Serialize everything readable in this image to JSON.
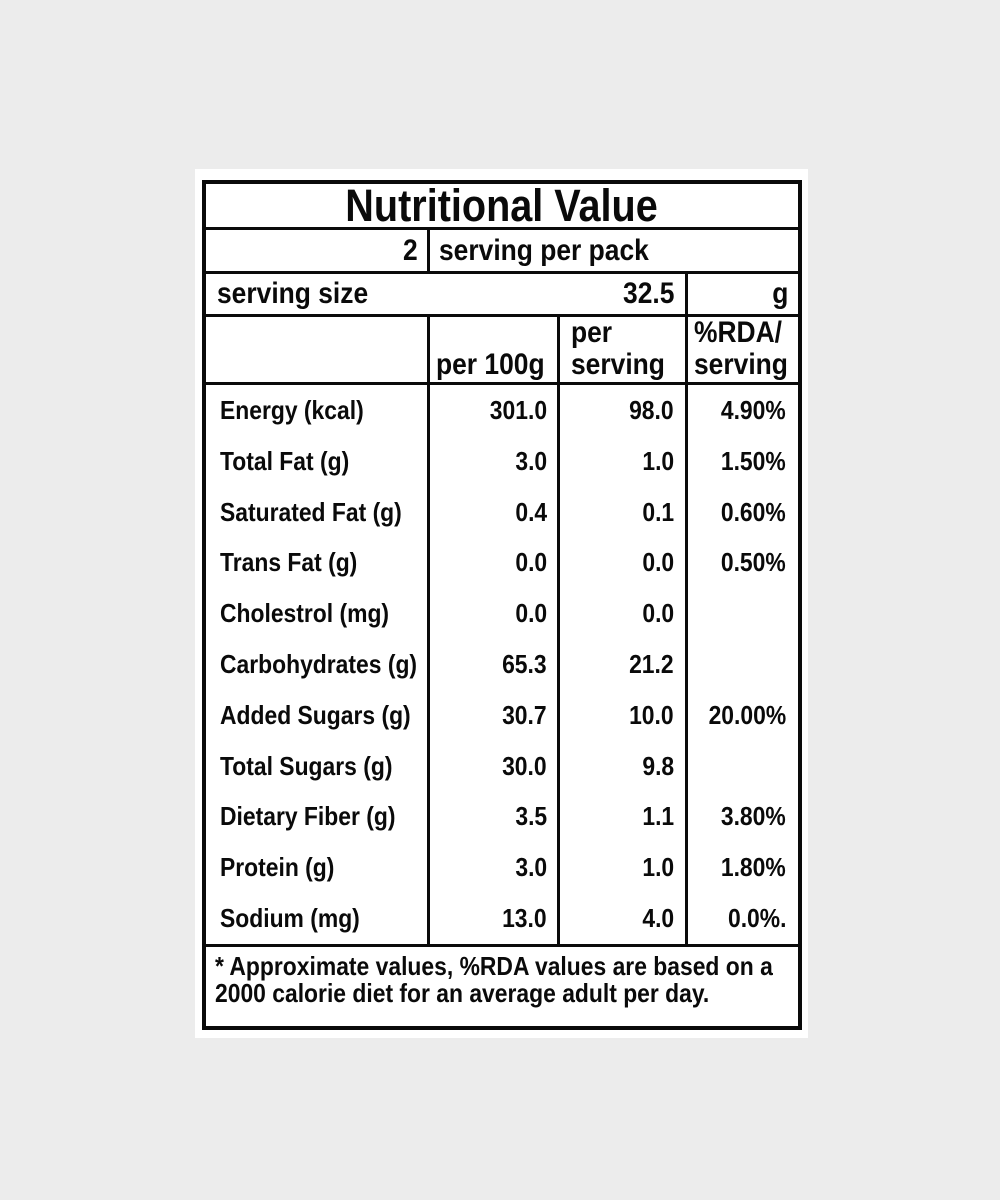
{
  "theme": {
    "page_background": "#ececec",
    "card_background": "#ffffff",
    "line_color": "#0a0a0a",
    "text_color": "#0a0a0a"
  },
  "label": {
    "title": "Nutritional Value",
    "servings_per_pack": {
      "value": "2",
      "text": "serving per pack"
    },
    "serving_size": {
      "text": "serving size",
      "value": "32.5",
      "unit": "g"
    },
    "columns": {
      "per_100g": "per 100g",
      "per_serving": "per\nserving",
      "rda_serving": "%RDA/\nserving"
    },
    "rows": [
      {
        "label": "Energy (kcal)",
        "per_100g": "301.0",
        "per_serving": "98.0",
        "rda": "4.90%"
      },
      {
        "label": "Total Fat (g)",
        "per_100g": "3.0",
        "per_serving": "1.0",
        "rda": "1.50%"
      },
      {
        "label": "Saturated Fat (g)",
        "per_100g": "0.4",
        "per_serving": "0.1",
        "rda": "0.60%"
      },
      {
        "label": "Trans Fat (g)",
        "per_100g": "0.0",
        "per_serving": "0.0",
        "rda": "0.50%"
      },
      {
        "label": "Cholestrol (mg)",
        "per_100g": "0.0",
        "per_serving": "0.0",
        "rda": ""
      },
      {
        "label": "Carbohydrates (g)",
        "per_100g": "65.3",
        "per_serving": "21.2",
        "rda": ""
      },
      {
        "label": "Added Sugars (g)",
        "per_100g": "30.7",
        "per_serving": "10.0",
        "rda": "20.00%"
      },
      {
        "label": "Total Sugars (g)",
        "per_100g": "30.0",
        "per_serving": "9.8",
        "rda": ""
      },
      {
        "label": "Dietary Fiber (g)",
        "per_100g": "3.5",
        "per_serving": "1.1",
        "rda": "3.80%"
      },
      {
        "label": "Protein (g)",
        "per_100g": "3.0",
        "per_serving": "1.0",
        "rda": "1.80%"
      },
      {
        "label": "Sodium (mg)",
        "per_100g": "13.0",
        "per_serving": "4.0",
        "rda": "0.0%."
      }
    ],
    "footnote": "* Approximate values, %RDA values are based on a\n2000 calorie diet for an average adult per day."
  }
}
